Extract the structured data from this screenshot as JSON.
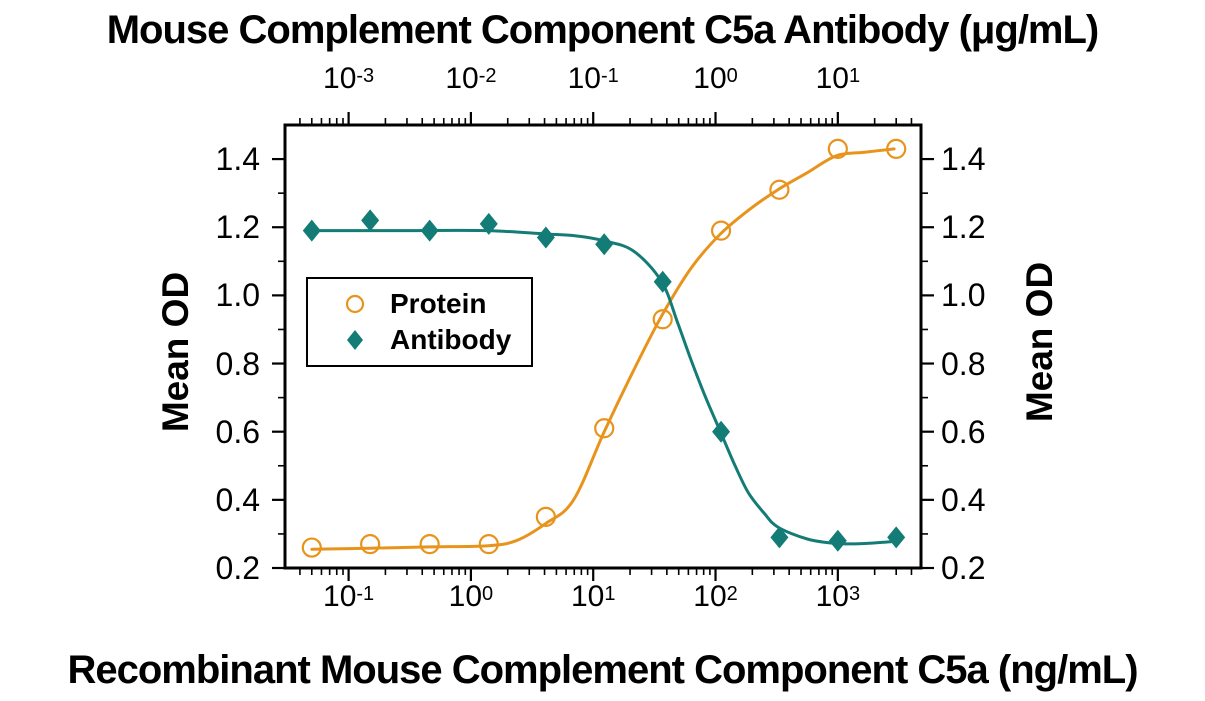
{
  "titles": {
    "top": "Mouse Complement Component C5a Antibody (μg/mL)",
    "bottom": "Recombinant Mouse Complement Component C5a (ng/mL)",
    "y_left": "Mean OD",
    "y_right": "Mean OD"
  },
  "legend": {
    "items": [
      {
        "label": "Protein",
        "marker": "open-circle",
        "color": "#E8941C"
      },
      {
        "label": "Antibody",
        "marker": "filled-diamond",
        "color": "#147C76"
      }
    ]
  },
  "colors": {
    "protein": "#E8941C",
    "antibody": "#147C76",
    "axis": "#000000",
    "background": "#ffffff"
  },
  "chart_data": {
    "type": "line",
    "title": "Mouse Complement Component C5a Antibody (μg/mL)",
    "xlabel_bottom": "Recombinant Mouse Complement Component C5a (ng/mL)",
    "xlabel_top": "Mouse Complement Component C5a Antibody (μg/mL)",
    "ylabel": "Mean OD",
    "grid": false,
    "legend_position": "upper-left-inside",
    "x_axis_bottom": {
      "scale": "log10",
      "log_range": [
        -1.52,
        3.68
      ],
      "tick_base": "10",
      "tick_exponents": [
        -1,
        0,
        1,
        2,
        3
      ]
    },
    "x_axis_top": {
      "scale": "log10",
      "log_range": [
        -3.52,
        1.68
      ],
      "tick_base": "10",
      "tick_exponents": [
        -3,
        -2,
        -1,
        0,
        1
      ]
    },
    "y_axis": {
      "range": [
        0.2,
        1.5
      ],
      "major_tick_step": 0.2,
      "minor_tick_step": 0.1,
      "tick_labels": [
        "0.2",
        "0.4",
        "0.6",
        "0.8",
        "1.0",
        "1.2",
        "1.4"
      ]
    },
    "series": [
      {
        "name": "Protein",
        "axis": "bottom",
        "marker": "open-circle",
        "color": "#E8941C",
        "dose_ng_ml": [
          0.05,
          0.15,
          0.46,
          1.4,
          4.1,
          12.3,
          37,
          111,
          333,
          1000,
          3000
        ],
        "mean_od": [
          0.26,
          0.27,
          0.27,
          0.27,
          0.35,
          0.61,
          0.93,
          1.19,
          1.31,
          1.43,
          1.43
        ],
        "fit_curve": {
          "log10_x": [
            -1.3,
            -0.83,
            -0.34,
            0.13,
            0.37,
            0.61,
            0.84,
            1.09,
            1.33,
            1.56,
            1.8,
            2.04,
            2.27,
            2.51,
            2.75,
            2.99,
            3.22,
            3.46
          ],
          "od": [
            0.255,
            0.258,
            0.262,
            0.265,
            0.28,
            0.33,
            0.4,
            0.6,
            0.78,
            0.94,
            1.08,
            1.18,
            1.25,
            1.31,
            1.36,
            1.41,
            1.42,
            1.43
          ]
        }
      },
      {
        "name": "Antibody",
        "axis": "top",
        "marker": "filled-diamond",
        "color": "#147C76",
        "dose_ug_ml": [
          0.0005,
          0.0015,
          0.0046,
          0.014,
          0.041,
          0.123,
          0.37,
          1.11,
          3.33,
          10,
          30
        ],
        "mean_od": [
          1.19,
          1.22,
          1.19,
          1.21,
          1.17,
          1.15,
          1.04,
          0.6,
          0.29,
          0.28,
          0.29
        ],
        "fit_curve": {
          "log10_x": [
            -3.3,
            -2.58,
            -1.87,
            -1.39,
            -1.15,
            -0.91,
            -0.67,
            -0.44,
            -0.31,
            -0.2,
            -0.08,
            0.04,
            0.16,
            0.27,
            0.4,
            0.51,
            0.75,
            0.99,
            1.22,
            1.46
          ],
          "od": [
            1.19,
            1.19,
            1.19,
            1.18,
            1.175,
            1.16,
            1.13,
            1.04,
            0.92,
            0.81,
            0.7,
            0.6,
            0.5,
            0.42,
            0.36,
            0.32,
            0.285,
            0.272,
            0.272,
            0.278
          ]
        }
      }
    ]
  }
}
